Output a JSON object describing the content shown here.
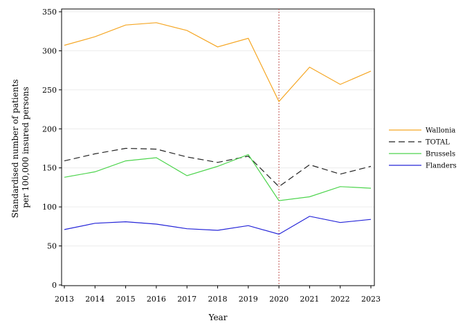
{
  "chart_data": {
    "type": "line",
    "xlabel": "Year",
    "ylabel_lines": [
      "Standardised number of patients",
      "per 100,000 insured persons"
    ],
    "x": [
      2013,
      2014,
      2015,
      2016,
      2017,
      2018,
      2019,
      2020,
      2021,
      2022,
      2023
    ],
    "xlim": [
      2013,
      2023
    ],
    "ylim": [
      0,
      350
    ],
    "yticks": [
      0,
      50,
      100,
      150,
      200,
      250,
      300,
      350
    ],
    "grid": "horizontal",
    "legend_position": "right",
    "reference_line": {
      "x": 2020,
      "style": "dotted",
      "color": "#c0504d"
    },
    "series": [
      {
        "name": "Wallonia",
        "color": "#f5a623",
        "dash": "solid",
        "values": [
          307,
          318,
          333,
          336,
          326,
          305,
          316,
          235,
          279,
          257,
          274
        ]
      },
      {
        "name": "TOTAL",
        "color": "#222222",
        "dash": "dashed",
        "values": [
          159,
          168,
          175,
          174,
          164,
          157,
          165,
          126,
          154,
          142,
          152
        ]
      },
      {
        "name": "Brussels",
        "color": "#4cd44c",
        "dash": "solid",
        "values": [
          138,
          145,
          159,
          163,
          140,
          152,
          167,
          108,
          113,
          126,
          124
        ]
      },
      {
        "name": "Flanders",
        "color": "#2424d8",
        "dash": "solid",
        "values": [
          71,
          79,
          81,
          78,
          72,
          70,
          76,
          65,
          88,
          80,
          84
        ]
      }
    ]
  }
}
